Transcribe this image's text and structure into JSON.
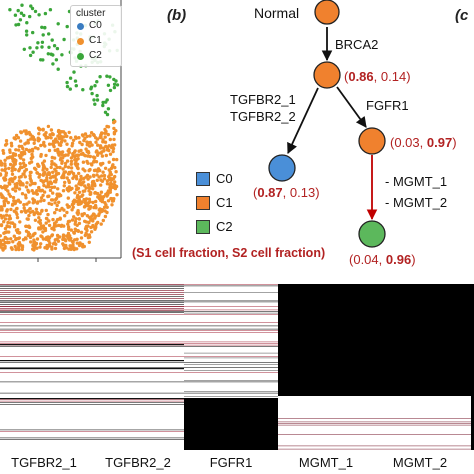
{
  "panels": {
    "b": "(b)",
    "c": "(c"
  },
  "scatter_legend": {
    "title": "cluster",
    "items": [
      {
        "label": "C0",
        "color": "#3a7cc1"
      },
      {
        "label": "C1",
        "color": "#f0912e"
      },
      {
        "label": "C2",
        "color": "#3aa63a"
      }
    ]
  },
  "tree": {
    "root_label": "Normal",
    "edge_root_c1": "BRCA2",
    "edge_c1_c0_line1": "TGFBR2_1",
    "edge_c1_c0_line2": "TGFBR2_2",
    "edge_c1_c1b": "FGFR1",
    "edge_c1b_c2_line1": "- MGMT_1",
    "edge_c1b_c2_line2": "- MGMT_2",
    "fractions": {
      "c1": {
        "s1": "0.86",
        "s2": "0.14",
        "bold": "s1"
      },
      "c1b": {
        "s1": "0.03",
        "s2": "0.97",
        "bold": "s2"
      },
      "c0": {
        "s1": "0.87",
        "s2": "0.13",
        "bold": "s1"
      },
      "c2": {
        "s1": "0.04",
        "s2": "0.96",
        "bold": "s2"
      }
    },
    "node_colors": {
      "orange": "#f0812e",
      "blue": "#4a8fd8",
      "green": "#5cb85c"
    }
  },
  "tree_legend": {
    "items": [
      {
        "label": "C0",
        "color": "#4a8fd8"
      },
      {
        "label": "C1",
        "color": "#f0812e"
      },
      {
        "label": "C2",
        "color": "#5cb85c"
      }
    ],
    "note": "(S1 cell fraction, S2 cell fraction)"
  },
  "heatmap": {
    "columns": [
      "TGFBR2_1",
      "TGFBR2_2",
      "FGFR1",
      "MGMT_1",
      "MGMT_2"
    ]
  }
}
